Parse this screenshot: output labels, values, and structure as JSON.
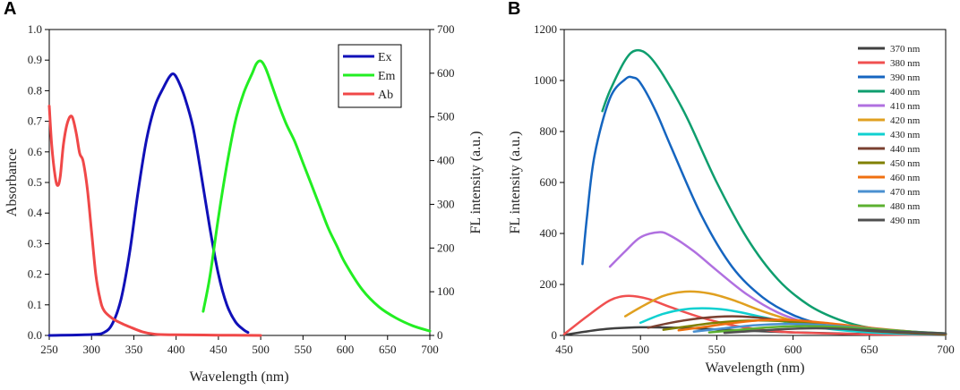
{
  "chart_data": [
    {
      "panel": "A",
      "type": "line",
      "title": "",
      "xlabel": "Wavelength (nm)",
      "ylabel": "Absorbance",
      "y2label": "FL intensity (a.u.)",
      "xlim": [
        250,
        700
      ],
      "ylim": [
        0,
        1.0
      ],
      "y2lim": [
        0,
        700
      ],
      "xticks": [
        250,
        300,
        350,
        400,
        450,
        500,
        550,
        600,
        650,
        700
      ],
      "yticks": [
        0.0,
        0.1,
        0.2,
        0.3,
        0.4,
        0.5,
        0.6,
        0.7,
        0.8,
        0.9,
        1.0
      ],
      "y2ticks": [
        0,
        100,
        200,
        300,
        400,
        500,
        600,
        700
      ],
      "legend_position": "top-right",
      "series": [
        {
          "name": "Ex",
          "color": "#1010b8",
          "axis": "left",
          "x": [
            250,
            300,
            315,
            325,
            335,
            345,
            355,
            365,
            375,
            385,
            392,
            397,
            402,
            410,
            420,
            430,
            440,
            450,
            460,
            470,
            480,
            485
          ],
          "y": [
            0.0,
            0.003,
            0.01,
            0.04,
            0.12,
            0.27,
            0.47,
            0.64,
            0.75,
            0.81,
            0.845,
            0.855,
            0.835,
            0.78,
            0.68,
            0.52,
            0.35,
            0.2,
            0.1,
            0.045,
            0.018,
            0.01
          ]
        },
        {
          "name": "Em",
          "color": "#22ee22",
          "axis": "right",
          "x": [
            432,
            440,
            450,
            460,
            470,
            480,
            490,
            495,
            500,
            505,
            510,
            520,
            530,
            540,
            550,
            560,
            570,
            580,
            590,
            600,
            620,
            640,
            660,
            680,
            700
          ],
          "y": [
            55,
            135,
            270,
            390,
            490,
            555,
            600,
            622,
            628,
            615,
            590,
            535,
            485,
            445,
            395,
            345,
            295,
            245,
            205,
            165,
            105,
            65,
            40,
            22,
            10
          ]
        },
        {
          "name": "Ab",
          "color": "#f04848",
          "axis": "left",
          "x": [
            250,
            253,
            257,
            260,
            263,
            267,
            272,
            277,
            282,
            286,
            290,
            295,
            300,
            305,
            310,
            315,
            325,
            335,
            345,
            360,
            375,
            400,
            450,
            500
          ],
          "y": [
            0.75,
            0.62,
            0.52,
            0.49,
            0.52,
            0.63,
            0.7,
            0.715,
            0.66,
            0.595,
            0.57,
            0.48,
            0.34,
            0.2,
            0.12,
            0.08,
            0.055,
            0.04,
            0.028,
            0.012,
            0.004,
            0.002,
            0.001,
            0.0
          ]
        }
      ]
    },
    {
      "panel": "B",
      "type": "line",
      "title": "",
      "xlabel": "Wavelength (nm)",
      "ylabel": "FL intensity (a.u.)",
      "xlim": [
        450,
        700
      ],
      "ylim": [
        0,
        1200
      ],
      "xticks": [
        450,
        500,
        550,
        600,
        650,
        700
      ],
      "yticks": [
        0,
        200,
        400,
        600,
        800,
        1000,
        1200
      ],
      "legend_position": "top-right",
      "series": [
        {
          "name": "370 nm",
          "color": "#404040",
          "x": [
            450,
            475,
            500,
            525,
            550,
            600,
            650,
            700
          ],
          "y": [
            2,
            24,
            32,
            30,
            24,
            12,
            5,
            2
          ]
        },
        {
          "name": "380 nm",
          "color": "#f05050",
          "x": [
            450,
            465,
            480,
            492,
            505,
            520,
            540,
            560,
            580,
            600,
            650,
            700
          ],
          "y": [
            5,
            75,
            138,
            155,
            143,
            110,
            70,
            40,
            22,
            12,
            4,
            2
          ]
        },
        {
          "name": "390 nm",
          "color": "#1565c0",
          "x": [
            462,
            465,
            470,
            480,
            490,
            495,
            500,
            510,
            520,
            540,
            560,
            580,
            600,
            620,
            650,
            680,
            700
          ],
          "y": [
            280,
            470,
            710,
            930,
            1005,
            1012,
            990,
            880,
            740,
            470,
            270,
            150,
            80,
            42,
            15,
            6,
            3
          ]
        },
        {
          "name": "400 nm",
          "color": "#0e9e6e",
          "x": [
            475,
            480,
            490,
            497,
            505,
            515,
            530,
            550,
            570,
            590,
            610,
            630,
            650,
            680,
            700
          ],
          "y": [
            880,
            960,
            1080,
            1118,
            1100,
            1020,
            860,
            600,
            380,
            220,
            120,
            62,
            30,
            10,
            5
          ]
        },
        {
          "name": "410 nm",
          "color": "#b070e0",
          "x": [
            480,
            490,
            500,
            512,
            520,
            535,
            550,
            570,
            590,
            610,
            630,
            650,
            680,
            700
          ],
          "y": [
            270,
            330,
            385,
            405,
            390,
            330,
            255,
            160,
            90,
            48,
            25,
            12,
            5,
            3
          ]
        },
        {
          "name": "420 nm",
          "color": "#e0a020",
          "x": [
            490,
            500,
            515,
            530,
            545,
            560,
            580,
            600,
            620,
            650,
            680,
            700
          ],
          "y": [
            75,
            110,
            155,
            172,
            165,
            140,
            95,
            58,
            32,
            14,
            6,
            3
          ]
        },
        {
          "name": "430 nm",
          "color": "#10d0d0",
          "x": [
            500,
            515,
            530,
            545,
            560,
            580,
            600,
            620,
            650,
            680,
            700
          ],
          "y": [
            50,
            85,
            103,
            106,
            97,
            72,
            47,
            28,
            12,
            5,
            3
          ]
        },
        {
          "name": "440 nm",
          "color": "#7a4030",
          "x": [
            505,
            520,
            540,
            560,
            580,
            600,
            620,
            650,
            680,
            700
          ],
          "y": [
            30,
            50,
            68,
            75,
            68,
            52,
            35,
            18,
            8,
            4
          ]
        },
        {
          "name": "450 nm",
          "color": "#808000",
          "x": [
            515,
            530,
            550,
            570,
            590,
            610,
            630,
            660,
            700
          ],
          "y": [
            22,
            35,
            50,
            58,
            57,
            48,
            35,
            18,
            6
          ]
        },
        {
          "name": "460 nm",
          "color": "#f07010",
          "x": [
            525,
            540,
            560,
            580,
            600,
            620,
            650,
            680,
            700
          ],
          "y": [
            20,
            32,
            48,
            60,
            60,
            50,
            30,
            14,
            7
          ]
        },
        {
          "name": "470 nm",
          "color": "#4a90d0",
          "x": [
            535,
            555,
            575,
            595,
            615,
            640,
            670,
            700
          ],
          "y": [
            15,
            28,
            40,
            45,
            42,
            32,
            18,
            8
          ]
        },
        {
          "name": "480 nm",
          "color": "#5cb030",
          "x": [
            545,
            565,
            585,
            605,
            625,
            650,
            680,
            700
          ],
          "y": [
            12,
            22,
            32,
            36,
            34,
            26,
            14,
            8
          ]
        },
        {
          "name": "490 nm",
          "color": "#505050",
          "x": [
            555,
            575,
            595,
            615,
            640,
            670,
            700
          ],
          "y": [
            10,
            18,
            25,
            28,
            24,
            15,
            8
          ]
        }
      ]
    }
  ]
}
